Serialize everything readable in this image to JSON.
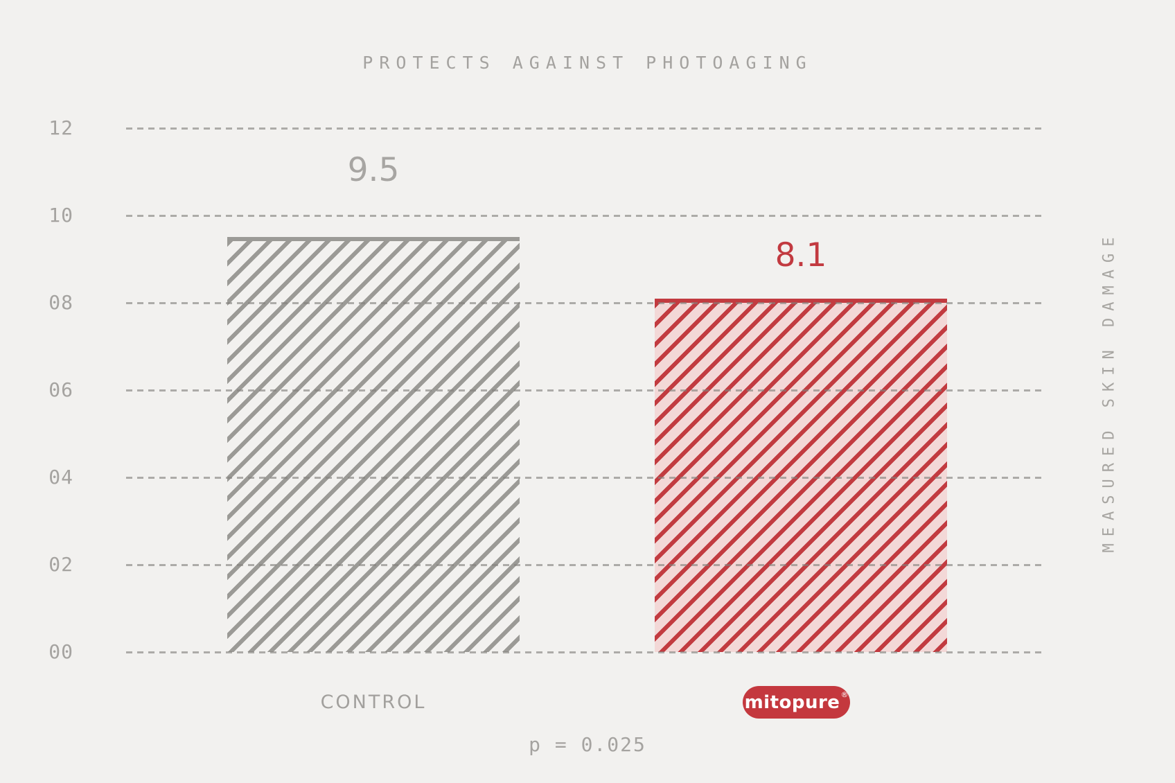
{
  "chart_data": {
    "type": "bar",
    "title": "PROTECTS AGAINST PHOTOAGING",
    "categories": [
      "CONTROL",
      "MITOPURE"
    ],
    "values": [
      9.5,
      8.1
    ],
    "value_labels": [
      "9.5",
      "8.1"
    ],
    "xlabel": "",
    "ylabel": "MEASURED SKIN DAMAGE",
    "ylim": [
      0,
      12
    ],
    "ytick_values": [
      12,
      10,
      8,
      6,
      4,
      2,
      0
    ],
    "ytick_labels": [
      "12",
      "10",
      "08",
      "06",
      "04",
      "02",
      "00"
    ],
    "grid": "dashed-horizontal",
    "legend_position": "none",
    "annotation": "p = 0.025",
    "colors": {
      "background": "#f2f1ef",
      "control_hatch": "#9b9a96",
      "mitopure_hatch": "#c23b40",
      "mitopure_fill": "#f3d8d7",
      "gray_text": "#a4a29f",
      "red_text": "#c23a40",
      "logo_pill": "#c4383e"
    }
  },
  "title": "PROTECTS AGAINST PHOTOAGING",
  "bars": {
    "control": {
      "value_label": "9.5",
      "x_label": "CONTROL"
    },
    "mitopure": {
      "value_label": "8.1",
      "logo_text": "mitopure",
      "reg_mark": "®"
    }
  },
  "y_axis": {
    "title": "MEASURED SKIN DAMAGE"
  },
  "footer": {
    "p_value": "p = 0.025"
  }
}
